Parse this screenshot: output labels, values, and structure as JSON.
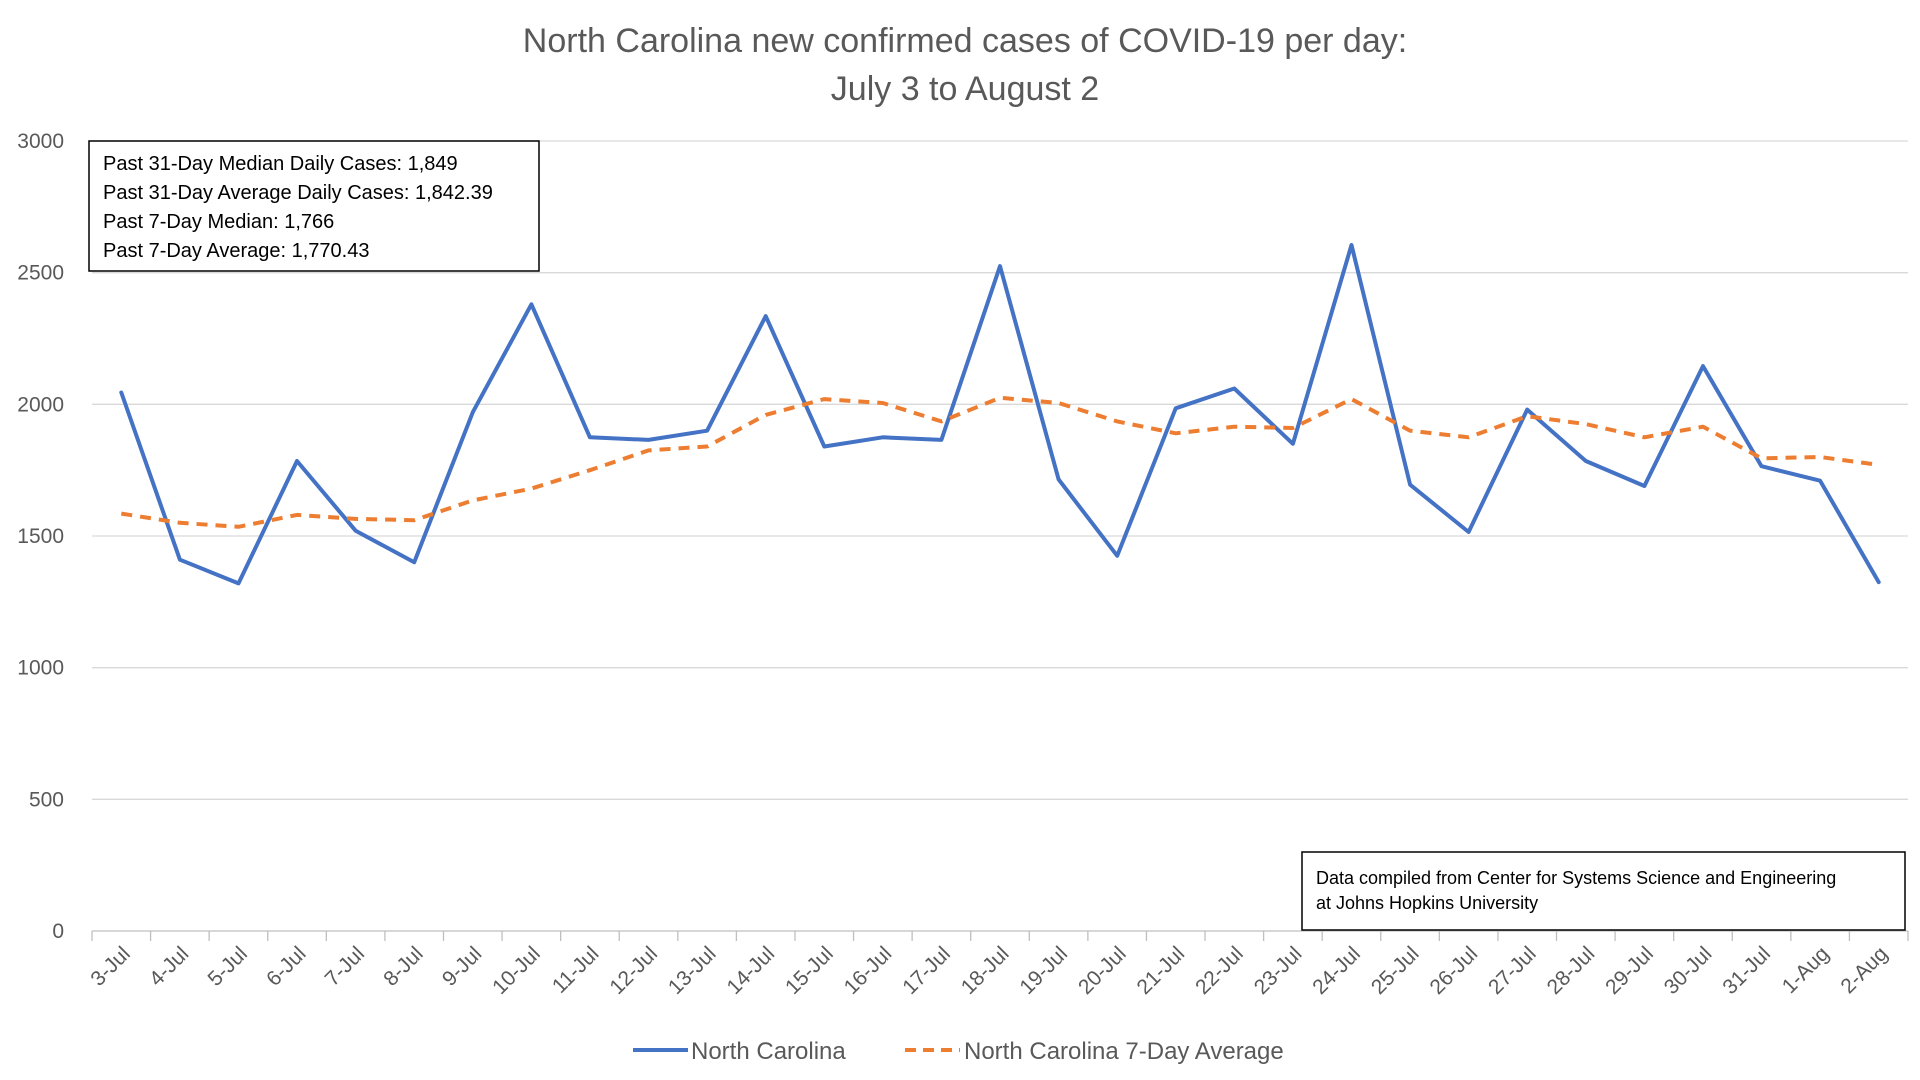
{
  "chart_data": {
    "type": "line",
    "title": "North Carolina new confirmed cases of COVID-19 per day:",
    "subtitle": "July 3 to August 2",
    "xlabel": "",
    "ylabel": "",
    "ylim": [
      0,
      3000
    ],
    "yticks": [
      0,
      500,
      1000,
      1500,
      2000,
      2500,
      3000
    ],
    "grid": true,
    "legend_position": "bottom",
    "categories": [
      "3-Jul",
      "4-Jul",
      "5-Jul",
      "6-Jul",
      "7-Jul",
      "8-Jul",
      "9-Jul",
      "10-Jul",
      "11-Jul",
      "12-Jul",
      "13-Jul",
      "14-Jul",
      "15-Jul",
      "16-Jul",
      "17-Jul",
      "18-Jul",
      "19-Jul",
      "20-Jul",
      "21-Jul",
      "22-Jul",
      "23-Jul",
      "24-Jul",
      "25-Jul",
      "26-Jul",
      "27-Jul",
      "28-Jul",
      "29-Jul",
      "30-Jul",
      "31-Jul",
      "1-Aug",
      "2-Aug"
    ],
    "series": [
      {
        "name": "North Carolina",
        "color": "#4472c4",
        "style": "solid",
        "values": [
          2045,
          1410,
          1320,
          1785,
          1520,
          1400,
          1970,
          2380,
          1875,
          1865,
          1900,
          2335,
          1840,
          1875,
          1865,
          2525,
          1715,
          1425,
          1985,
          2060,
          1850,
          2605,
          1695,
          1515,
          1980,
          1785,
          1690,
          2145,
          1765,
          1710,
          1325
        ]
      },
      {
        "name": "North Carolina 7-Day Average",
        "color": "#ed7d31",
        "style": "dashed",
        "values": [
          1585,
          1550,
          1535,
          1580,
          1565,
          1560,
          1635,
          1680,
          1750,
          1825,
          1840,
          1960,
          2020,
          2005,
          1935,
          2025,
          2005,
          1935,
          1890,
          1915,
          1910,
          2020,
          1900,
          1875,
          1955,
          1925,
          1875,
          1915,
          1795,
          1800,
          1770
        ]
      }
    ],
    "annotations": {
      "stats_lines": [
        "Past 31-Day Median Daily Cases: 1,849",
        "Past 31-Day Average Daily Cases: 1,842.39",
        "Past 7-Day Median: 1,766",
        "Past 7-Day Average: 1,770.43"
      ],
      "source_lines": [
        "Data compiled from Center for Systems Science and Engineering",
        "at Johns Hopkins University"
      ]
    }
  }
}
